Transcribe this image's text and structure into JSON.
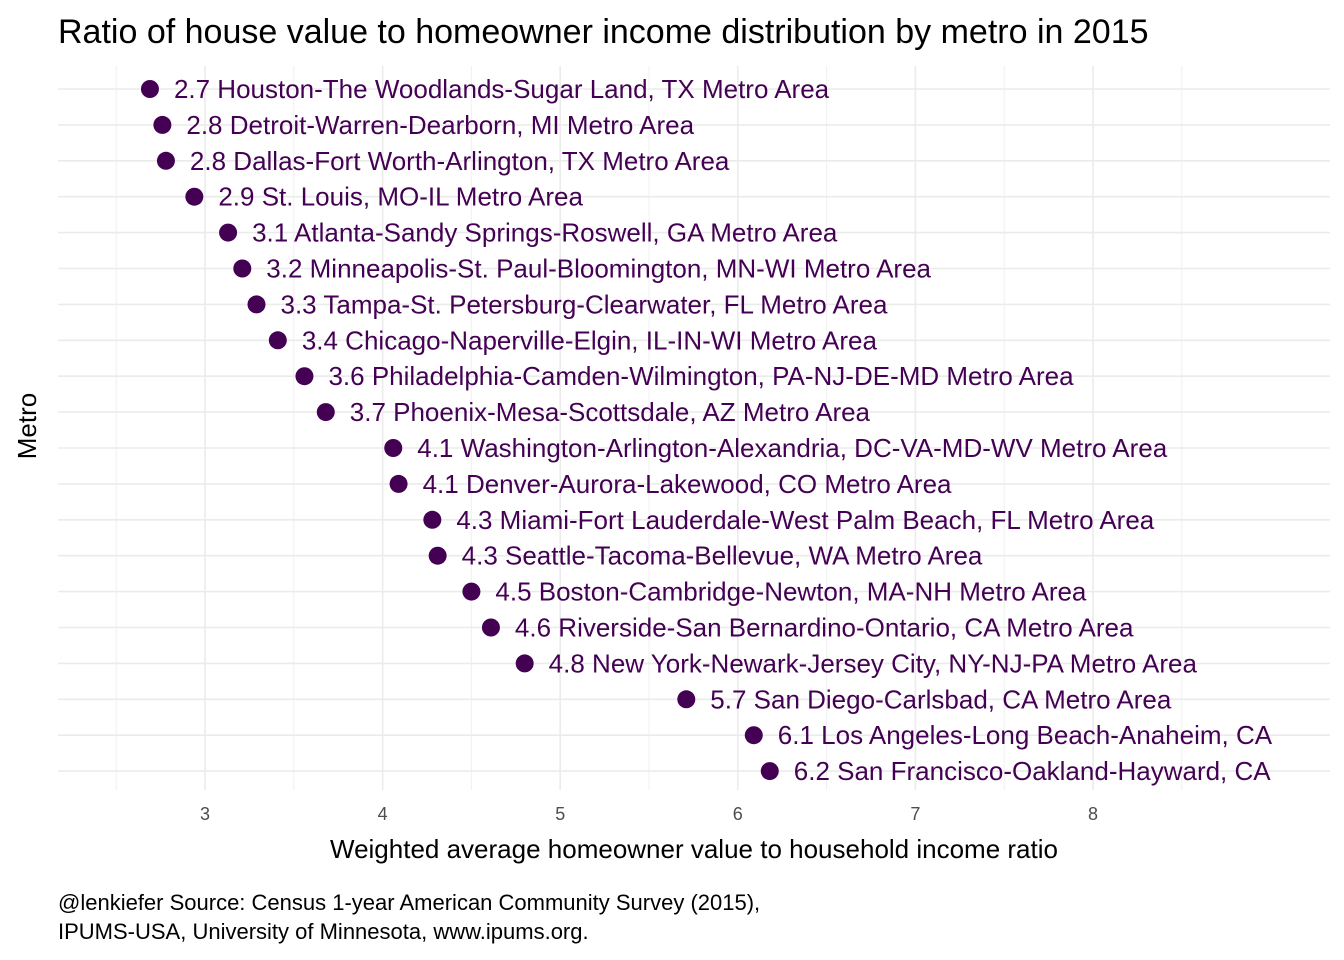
{
  "chart_data": {
    "type": "scatter",
    "title": "Ratio of house value to homeowner income distribution by metro in 2015",
    "xlabel": "Weighted average homeowner value to household income ratio",
    "ylabel": "Metro",
    "xlim": [
      2.5,
      9.1
    ],
    "x_ticks": [
      "3",
      "4",
      "5",
      "6",
      "7",
      "8"
    ],
    "grid": true,
    "legend": "none",
    "point_color": "#440154",
    "points": [
      {
        "value": 2.69,
        "label": "2.7 Houston-The Woodlands-Sugar Land, TX Metro Area"
      },
      {
        "value": 2.76,
        "label": "2.8 Detroit-Warren-Dearborn, MI Metro Area"
      },
      {
        "value": 2.78,
        "label": "2.8 Dallas-Fort Worth-Arlington, TX Metro Area"
      },
      {
        "value": 2.94,
        "label": "2.9 St. Louis, MO-IL Metro Area"
      },
      {
        "value": 3.13,
        "label": "3.1 Atlanta-Sandy Springs-Roswell, GA Metro Area"
      },
      {
        "value": 3.21,
        "label": "3.2 Minneapolis-St. Paul-Bloomington, MN-WI Metro Area"
      },
      {
        "value": 3.29,
        "label": "3.3 Tampa-St. Petersburg-Clearwater, FL Metro Area"
      },
      {
        "value": 3.41,
        "label": "3.4 Chicago-Naperville-Elgin, IL-IN-WI Metro Area"
      },
      {
        "value": 3.56,
        "label": "3.6 Philadelphia-Camden-Wilmington, PA-NJ-DE-MD Metro Area"
      },
      {
        "value": 3.68,
        "label": "3.7 Phoenix-Mesa-Scottsdale, AZ Metro Area"
      },
      {
        "value": 4.06,
        "label": "4.1 Washington-Arlington-Alexandria, DC-VA-MD-WV Metro Area"
      },
      {
        "value": 4.09,
        "label": "4.1 Denver-Aurora-Lakewood, CO Metro Area"
      },
      {
        "value": 4.28,
        "label": "4.3 Miami-Fort Lauderdale-West Palm Beach, FL Metro Area"
      },
      {
        "value": 4.31,
        "label": "4.3 Seattle-Tacoma-Bellevue, WA Metro Area"
      },
      {
        "value": 4.5,
        "label": "4.5 Boston-Cambridge-Newton, MA-NH Metro Area"
      },
      {
        "value": 4.61,
        "label": "4.6 Riverside-San Bernardino-Ontario, CA Metro Area"
      },
      {
        "value": 4.8,
        "label": "4.8 New York-Newark-Jersey City, NY-NJ-PA Metro Area"
      },
      {
        "value": 5.71,
        "label": "5.7 San Diego-Carlsbad, CA Metro Area"
      },
      {
        "value": 6.09,
        "label": "6.1 Los Angeles-Long Beach-Anaheim, CA"
      },
      {
        "value": 6.18,
        "label": "6.2 San Francisco-Oakland-Hayward, CA"
      }
    ],
    "caption": [
      "@lenkiefer Source: Census 1-year American Community Survey (2015),",
      "IPUMS-USA, University of Minnesota, www.ipums.org."
    ]
  }
}
